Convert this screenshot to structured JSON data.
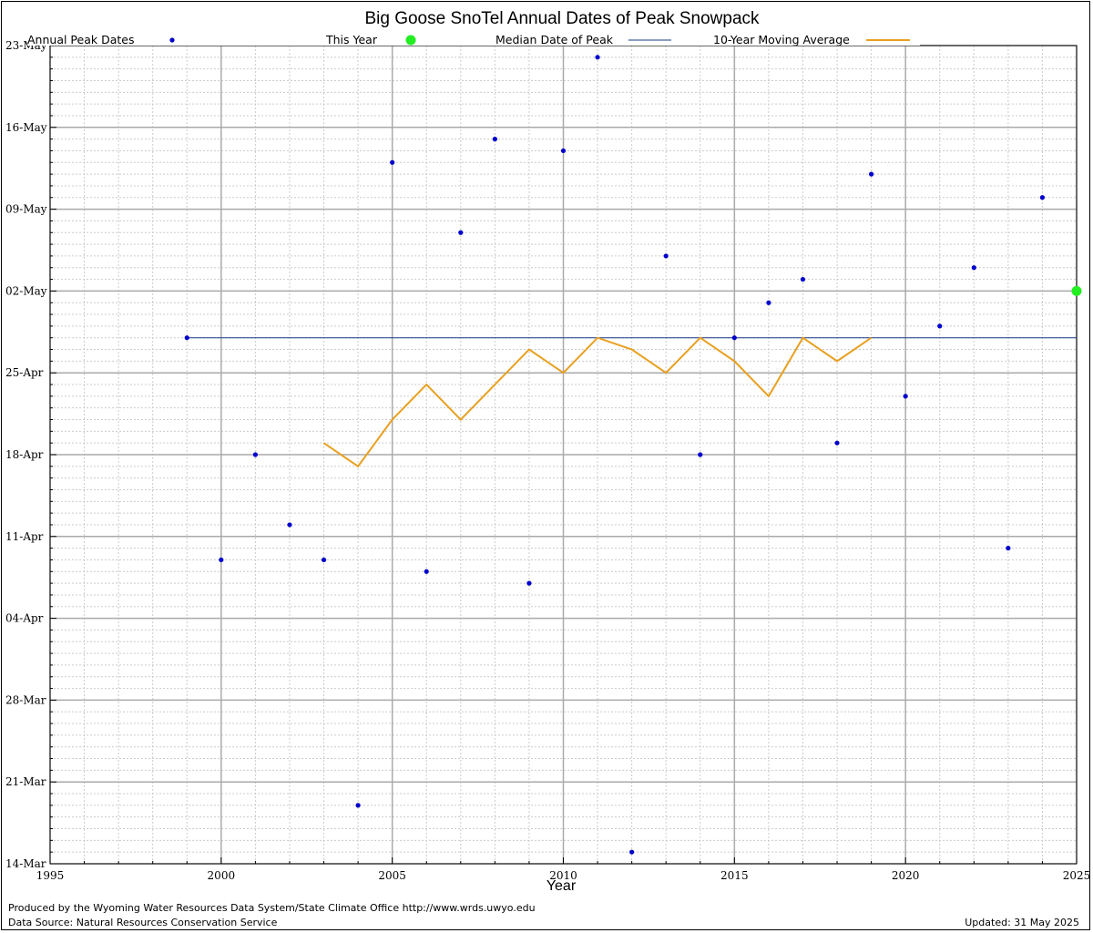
{
  "footer": {
    "credit": "Produced by the Wyoming Water Resources Data System/State Climate Office http://www.wrds.uwyo.edu",
    "source": "Data Source: Natural Resources Conservation Service",
    "updated": "Updated: 31 May 2025"
  },
  "chart_data": {
    "type": "scatter",
    "title": "Big Goose SnoTel Annual Dates of Peak Snowpack",
    "xlabel": "Year",
    "ylabel": "",
    "xlim": [
      1995,
      2025
    ],
    "ylim": [
      "14-Mar",
      "23-May"
    ],
    "x_ticks": [
      1995,
      2000,
      2005,
      2010,
      2015,
      2020,
      2025
    ],
    "y_ticks": [
      "14-Mar",
      "21-Mar",
      "28-Mar",
      "04-Apr",
      "11-Apr",
      "18-Apr",
      "25-Apr",
      "02-May",
      "09-May",
      "16-May",
      "23-May"
    ],
    "grid": true,
    "legend_placement": "top",
    "colors": {
      "annual_peak": "#0000cc",
      "this_year": "#22ee22",
      "median": "#1a3a8a",
      "moving_average": "#e8a020",
      "grid_major": "#aaaaaa",
      "grid_minor": "#cccccc"
    },
    "series": [
      {
        "name": "Annual Peak Dates",
        "type": "scatter",
        "points": [
          {
            "x": 1999,
            "y": "28-Apr"
          },
          {
            "x": 2000,
            "y": "09-Apr"
          },
          {
            "x": 2001,
            "y": "18-Apr"
          },
          {
            "x": 2002,
            "y": "12-Apr"
          },
          {
            "x": 2003,
            "y": "09-Apr"
          },
          {
            "x": 2004,
            "y": "19-Mar"
          },
          {
            "x": 2005,
            "y": "13-May"
          },
          {
            "x": 2006,
            "y": "08-Apr"
          },
          {
            "x": 2007,
            "y": "07-May"
          },
          {
            "x": 2008,
            "y": "15-May"
          },
          {
            "x": 2009,
            "y": "07-Apr"
          },
          {
            "x": 2010,
            "y": "14-May"
          },
          {
            "x": 2011,
            "y": "22-May"
          },
          {
            "x": 2012,
            "y": "15-Mar"
          },
          {
            "x": 2013,
            "y": "05-May"
          },
          {
            "x": 2014,
            "y": "18-Apr"
          },
          {
            "x": 2015,
            "y": "28-Apr"
          },
          {
            "x": 2016,
            "y": "01-May"
          },
          {
            "x": 2017,
            "y": "03-May"
          },
          {
            "x": 2018,
            "y": "19-Apr"
          },
          {
            "x": 2019,
            "y": "12-May"
          },
          {
            "x": 2020,
            "y": "23-Apr"
          },
          {
            "x": 2021,
            "y": "29-Apr"
          },
          {
            "x": 2022,
            "y": "04-May"
          },
          {
            "x": 2023,
            "y": "10-Apr"
          },
          {
            "x": 2024,
            "y": "10-May"
          }
        ]
      },
      {
        "name": "This Year",
        "type": "scatter",
        "points": [
          {
            "x": 2025,
            "y": "02-May"
          }
        ]
      },
      {
        "name": "Median Date of Peak",
        "type": "line",
        "points": [
          {
            "x": 1999,
            "y": "28-Apr"
          },
          {
            "x": 2025,
            "y": "28-Apr"
          }
        ]
      },
      {
        "name": "10-Year Moving Average",
        "type": "line",
        "points": [
          {
            "x": 2003,
            "y": "19-Apr"
          },
          {
            "x": 2004,
            "y": "17-Apr"
          },
          {
            "x": 2005,
            "y": "21-Apr"
          },
          {
            "x": 2006,
            "y": "24-Apr"
          },
          {
            "x": 2007,
            "y": "21-Apr"
          },
          {
            "x": 2008,
            "y": "24-Apr"
          },
          {
            "x": 2009,
            "y": "27-Apr"
          },
          {
            "x": 2010,
            "y": "25-Apr"
          },
          {
            "x": 2011,
            "y": "28-Apr"
          },
          {
            "x": 2012,
            "y": "27-Apr"
          },
          {
            "x": 2013,
            "y": "25-Apr"
          },
          {
            "x": 2014,
            "y": "28-Apr"
          },
          {
            "x": 2015,
            "y": "26-Apr"
          },
          {
            "x": 2016,
            "y": "23-Apr"
          },
          {
            "x": 2017,
            "y": "28-Apr"
          },
          {
            "x": 2018,
            "y": "26-Apr"
          },
          {
            "x": 2019,
            "y": "28-Apr"
          }
        ]
      }
    ]
  }
}
